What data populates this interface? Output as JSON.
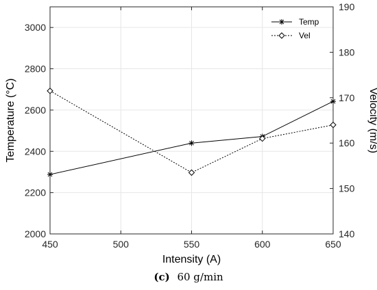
{
  "chart_data": {
    "type": "line",
    "x": [
      450,
      550,
      600,
      650
    ],
    "xlabel": "Intensity (A)",
    "xlim": [
      450,
      650
    ],
    "xticks": [
      "450",
      "500",
      "550",
      "600",
      "650"
    ],
    "ylabel": "Temperature (°C)",
    "ylim": [
      2000,
      3100
    ],
    "yticks": [
      "2000",
      "2200",
      "2400",
      "2600",
      "2800",
      "3000"
    ],
    "y2label": "Velocity (m/s)",
    "y2lim": [
      140,
      190
    ],
    "y2ticks": [
      "140",
      "150",
      "160",
      "170",
      "180",
      "190"
    ],
    "grid": true,
    "legend_position": "top-right",
    "series": [
      {
        "name": "Temp",
        "axis": "left",
        "marker": "asterisk",
        "linestyle": "solid",
        "values": [
          2288,
          2440,
          2472,
          2642
        ]
      },
      {
        "name": "Vel",
        "axis": "right",
        "marker": "diamond",
        "linestyle": "dotted",
        "values": [
          171.5,
          153.5,
          161,
          164
        ]
      }
    ],
    "caption_label": "(c)",
    "caption_text": "60 g/min"
  }
}
